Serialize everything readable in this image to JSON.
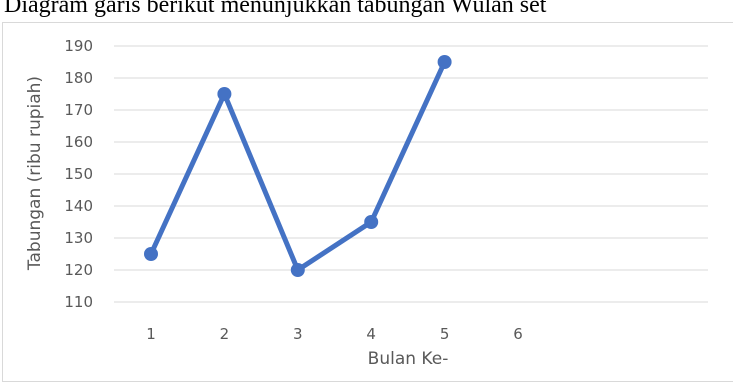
{
  "heading": "Diagram garis berikut menunjukkan tabungan Wulan set",
  "chart_data": {
    "type": "line",
    "x": [
      1,
      2,
      3,
      4,
      5
    ],
    "x_ticks": [
      "1",
      "2",
      "3",
      "4",
      "5",
      "6"
    ],
    "series": [
      {
        "values": [
          125,
          175,
          120,
          135,
          185
        ],
        "color": "#4472c4"
      }
    ],
    "xlabel": "Bulan Ke-",
    "ylabel": "Tabungan (ribu rupiah)",
    "ylim": [
      110,
      190
    ],
    "y_ticks": [
      110,
      120,
      130,
      140,
      150,
      160,
      170,
      180,
      190
    ],
    "grid": true,
    "legend": "none",
    "gridline_color": "#d9d9d9"
  }
}
